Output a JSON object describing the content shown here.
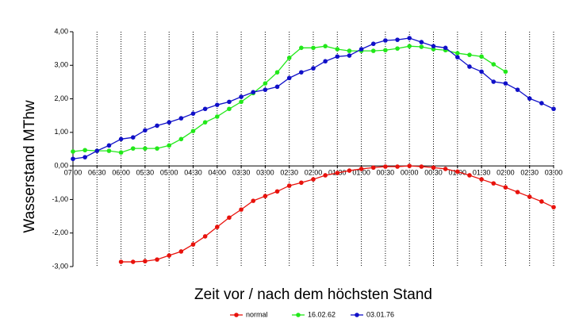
{
  "chart_data": {
    "type": "line",
    "y_label": "Wasserstand MThw",
    "x_label": "Zeit vor / nach dem höchsten Stand",
    "x": [
      -7,
      -6.75,
      -6.5,
      -6.25,
      -6,
      -5.75,
      -5.5,
      -5.25,
      -5,
      -4.75,
      -4.5,
      -4.25,
      -4,
      -3.75,
      -3.5,
      -3.25,
      -3,
      -2.75,
      -2.5,
      -2.25,
      -2,
      -1.75,
      -1.5,
      -1.25,
      -1,
      -0.75,
      -0.5,
      -0.25,
      0,
      0.25,
      0.5,
      0.75,
      1,
      1.25,
      1.5,
      1.75,
      2,
      2.25,
      2.5,
      2.75,
      3
    ],
    "xlim": [
      -7,
      3
    ],
    "xticks": [
      {
        "value": -7,
        "label": "07:00"
      },
      {
        "value": -6.5,
        "label": "06:30"
      },
      {
        "value": -6,
        "label": "06:00"
      },
      {
        "value": -5.5,
        "label": "05:30"
      },
      {
        "value": -5,
        "label": "05:00"
      },
      {
        "value": -4.5,
        "label": "04:30"
      },
      {
        "value": -4,
        "label": "04:00"
      },
      {
        "value": -3.5,
        "label": "03:30"
      },
      {
        "value": -3,
        "label": "03:00"
      },
      {
        "value": -2.5,
        "label": "02:30"
      },
      {
        "value": -2,
        "label": "02:00"
      },
      {
        "value": -1.5,
        "label": "01:30"
      },
      {
        "value": -1,
        "label": "01:00"
      },
      {
        "value": -0.5,
        "label": "00:30"
      },
      {
        "value": 0,
        "label": "00:00"
      },
      {
        "value": 0.5,
        "label": "00:30"
      },
      {
        "value": 1,
        "label": "01:00"
      },
      {
        "value": 1.5,
        "label": "01:30"
      },
      {
        "value": 2,
        "label": "02:00"
      },
      {
        "value": 2.5,
        "label": "02:30"
      },
      {
        "value": 3,
        "label": "03:00"
      }
    ],
    "ylim": [
      -3,
      4
    ],
    "yticks": [
      {
        "value": 4,
        "label": "4,00"
      },
      {
        "value": 3,
        "label": "3,00"
      },
      {
        "value": 2,
        "label": "2,00"
      },
      {
        "value": 1,
        "label": "1,00"
      },
      {
        "value": 0,
        "label": "0,00"
      },
      {
        "value": -1,
        "label": "-1,00"
      },
      {
        "value": -2,
        "label": "-2,00"
      },
      {
        "value": -3,
        "label": "-3,00"
      }
    ],
    "grid": "x",
    "series": [
      {
        "name": "normal",
        "color": "#e8120c",
        "values": [
          null,
          null,
          null,
          null,
          -2.86,
          -2.86,
          -2.84,
          -2.79,
          -2.67,
          -2.55,
          -2.34,
          -2.1,
          -1.82,
          -1.54,
          -1.3,
          -1.04,
          -0.9,
          -0.76,
          -0.59,
          -0.5,
          -0.4,
          -0.28,
          -0.21,
          -0.14,
          -0.09,
          -0.05,
          -0.02,
          -0.02,
          0,
          -0.02,
          -0.05,
          -0.09,
          -0.17,
          -0.28,
          -0.4,
          -0.52,
          -0.64,
          -0.78,
          -0.92,
          -1.06,
          -1.23
        ]
      },
      {
        "name": "16.02.62",
        "color": "#22e81a",
        "values": [
          0.43,
          0.47,
          0.45,
          0.45,
          0.4,
          0.52,
          0.52,
          0.52,
          0.61,
          0.8,
          1.04,
          1.3,
          1.47,
          1.7,
          1.91,
          2.17,
          2.46,
          2.79,
          3.22,
          3.52,
          3.52,
          3.57,
          3.48,
          3.43,
          3.43,
          3.43,
          3.45,
          3.5,
          3.57,
          3.55,
          3.48,
          3.45,
          3.36,
          3.31,
          3.26,
          3.03,
          2.81,
          null,
          null,
          null,
          null
        ]
      },
      {
        "name": "03.01.76",
        "color": "#1010c8",
        "values": [
          0.21,
          0.26,
          0.45,
          0.61,
          0.8,
          0.85,
          1.06,
          1.2,
          1.3,
          1.42,
          1.56,
          1.7,
          1.82,
          1.91,
          2.06,
          2.2,
          2.27,
          2.36,
          2.62,
          2.79,
          2.91,
          3.12,
          3.26,
          3.29,
          3.48,
          3.64,
          3.74,
          3.76,
          3.81,
          3.69,
          3.57,
          3.52,
          3.24,
          2.96,
          2.81,
          2.51,
          2.46,
          2.27,
          2.01,
          1.87,
          1.7
        ]
      }
    ]
  }
}
